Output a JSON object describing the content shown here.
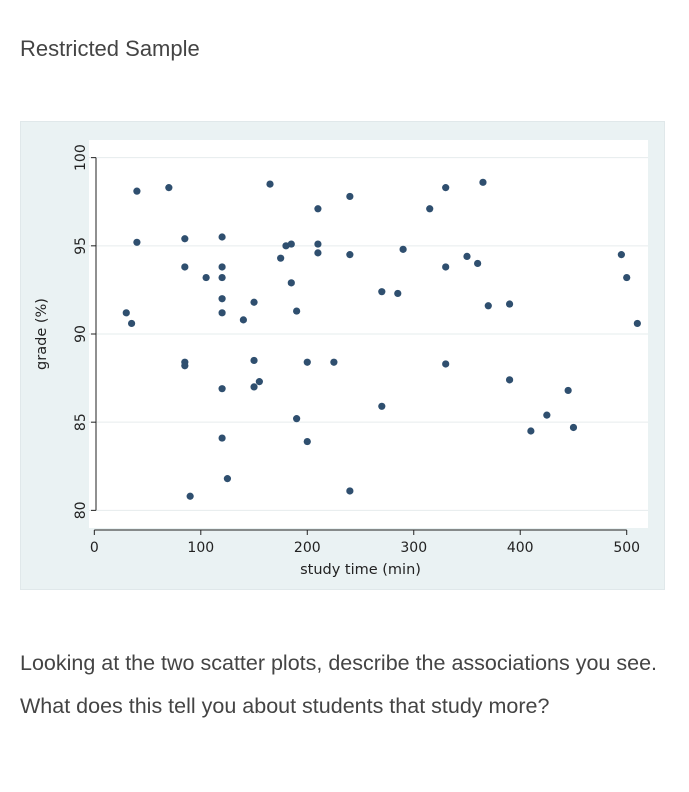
{
  "page": {
    "heading": "Restricted Sample",
    "question": "Looking at the two scatter plots, describe the associations you see. What does this tell you about students that study more?"
  },
  "chart_data": {
    "type": "scatter",
    "title": "",
    "xlabel": "study time (min)",
    "ylabel": "grade (%)",
    "xlim": [
      -5,
      520
    ],
    "ylim": [
      79,
      101
    ],
    "xticks": [
      0,
      100,
      200,
      300,
      400,
      500
    ],
    "yticks": [
      80,
      85,
      90,
      95,
      100
    ],
    "grid": true,
    "marker_color": "#2f4f6f",
    "background_color": "#eaf2f3",
    "plot_background": "#ffffff",
    "points": [
      {
        "x": 30,
        "y": 91.2
      },
      {
        "x": 35,
        "y": 90.6
      },
      {
        "x": 40,
        "y": 98.1
      },
      {
        "x": 40,
        "y": 95.2
      },
      {
        "x": 70,
        "y": 98.3
      },
      {
        "x": 85,
        "y": 95.4
      },
      {
        "x": 85,
        "y": 93.8
      },
      {
        "x": 85,
        "y": 88.4
      },
      {
        "x": 85,
        "y": 88.2
      },
      {
        "x": 90,
        "y": 80.8
      },
      {
        "x": 105,
        "y": 93.2
      },
      {
        "x": 120,
        "y": 95.5
      },
      {
        "x": 120,
        "y": 93.8
      },
      {
        "x": 120,
        "y": 93.2
      },
      {
        "x": 120,
        "y": 92.0
      },
      {
        "x": 120,
        "y": 91.2
      },
      {
        "x": 120,
        "y": 86.9
      },
      {
        "x": 120,
        "y": 84.1
      },
      {
        "x": 125,
        "y": 81.8
      },
      {
        "x": 140,
        "y": 90.8
      },
      {
        "x": 150,
        "y": 91.8
      },
      {
        "x": 150,
        "y": 88.5
      },
      {
        "x": 150,
        "y": 87.0
      },
      {
        "x": 155,
        "y": 87.3
      },
      {
        "x": 165,
        "y": 98.5
      },
      {
        "x": 175,
        "y": 94.3
      },
      {
        "x": 180,
        "y": 95.0
      },
      {
        "x": 185,
        "y": 95.1
      },
      {
        "x": 185,
        "y": 92.9
      },
      {
        "x": 190,
        "y": 91.3
      },
      {
        "x": 190,
        "y": 85.2
      },
      {
        "x": 200,
        "y": 88.4
      },
      {
        "x": 200,
        "y": 83.9
      },
      {
        "x": 210,
        "y": 97.1
      },
      {
        "x": 210,
        "y": 95.1
      },
      {
        "x": 210,
        "y": 94.6
      },
      {
        "x": 225,
        "y": 88.4
      },
      {
        "x": 240,
        "y": 97.8
      },
      {
        "x": 240,
        "y": 94.5
      },
      {
        "x": 240,
        "y": 81.1
      },
      {
        "x": 270,
        "y": 92.4
      },
      {
        "x": 270,
        "y": 85.9
      },
      {
        "x": 285,
        "y": 92.3
      },
      {
        "x": 290,
        "y": 94.8
      },
      {
        "x": 315,
        "y": 97.1
      },
      {
        "x": 330,
        "y": 98.3
      },
      {
        "x": 330,
        "y": 93.8
      },
      {
        "x": 330,
        "y": 88.3
      },
      {
        "x": 350,
        "y": 94.4
      },
      {
        "x": 360,
        "y": 94.0
      },
      {
        "x": 365,
        "y": 98.6
      },
      {
        "x": 370,
        "y": 91.6
      },
      {
        "x": 390,
        "y": 91.7
      },
      {
        "x": 390,
        "y": 87.4
      },
      {
        "x": 410,
        "y": 84.5
      },
      {
        "x": 425,
        "y": 85.4
      },
      {
        "x": 445,
        "y": 86.8
      },
      {
        "x": 450,
        "y": 84.7
      },
      {
        "x": 495,
        "y": 94.5
      },
      {
        "x": 500,
        "y": 93.2
      },
      {
        "x": 510,
        "y": 90.6
      }
    ]
  }
}
